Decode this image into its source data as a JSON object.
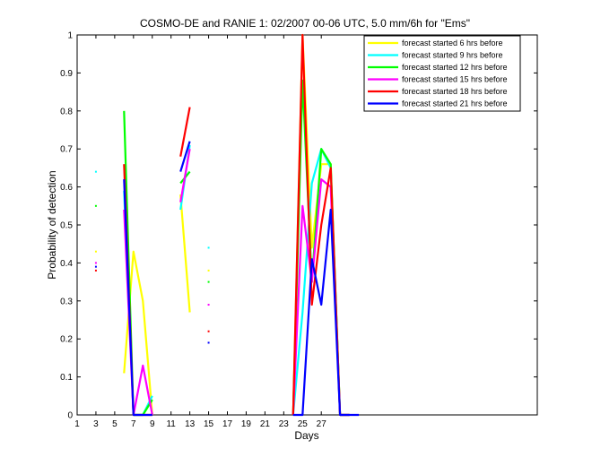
{
  "chart_data": {
    "type": "line",
    "title": "COSMO-DE and RANIE 1: 02/2007 00-06 UTC, 5.0 mm/6h for \"Ems\"",
    "xlabel": "Days",
    "ylabel": "Probability of detection",
    "xlim": [
      1,
      50
    ],
    "ylim": [
      0,
      1
    ],
    "xticks": [
      1,
      3,
      5,
      7,
      9,
      11,
      13,
      15,
      17,
      19,
      21,
      23,
      25,
      27
    ],
    "yticks": [
      0,
      0.1,
      0.2,
      0.3,
      0.4,
      0.5,
      0.6,
      0.7,
      0.8,
      0.9,
      1
    ],
    "legend_position": "top-right",
    "series": [
      {
        "name": "forecast started 6 hrs before",
        "color": "#ffff00",
        "dots": [
          [
            3,
            0.43
          ],
          [
            15,
            0.38
          ]
        ],
        "segments": [
          [
            [
              6,
              0.11
            ],
            [
              7,
              0.43
            ],
            [
              8,
              0.3
            ],
            [
              9,
              0.0
            ]
          ],
          [
            [
              12,
              0.58
            ],
            [
              13,
              0.27
            ]
          ],
          [
            [
              24,
              0.0
            ],
            [
              25,
              1.0
            ],
            [
              26,
              0.44
            ],
            [
              27,
              0.66
            ],
            [
              28,
              0.66
            ],
            [
              29,
              0.0
            ],
            [
              30,
              0.0
            ]
          ]
        ]
      },
      {
        "name": "forecast started 9 hrs before",
        "color": "#00ffff",
        "dots": [
          [
            3,
            0.64
          ],
          [
            15,
            0.44
          ]
        ],
        "segments": [
          [
            [
              6,
              0.59
            ],
            [
              7,
              0.0
            ],
            [
              8,
              0.0
            ],
            [
              9,
              0.05
            ]
          ],
          [
            [
              12,
              0.54
            ],
            [
              13,
              0.71
            ]
          ],
          [
            [
              24,
              0.0
            ],
            [
              25,
              0.27
            ],
            [
              26,
              0.61
            ],
            [
              27,
              0.7
            ],
            [
              28,
              0.65
            ],
            [
              29,
              0.0
            ],
            [
              30,
              0.0
            ]
          ]
        ]
      },
      {
        "name": "forecast started 12 hrs before",
        "color": "#00ff00",
        "dots": [
          [
            3,
            0.55
          ],
          [
            15,
            0.35
          ]
        ],
        "segments": [
          [
            [
              6,
              0.8
            ],
            [
              7,
              0.0
            ],
            [
              8,
              0.0
            ],
            [
              9,
              0.04
            ]
          ],
          [
            [
              12,
              0.61
            ],
            [
              13,
              0.64
            ]
          ],
          [
            [
              24,
              0.0
            ],
            [
              25,
              0.88
            ],
            [
              26,
              0.35
            ],
            [
              27,
              0.7
            ],
            [
              28,
              0.66
            ],
            [
              29,
              0.0
            ],
            [
              30,
              0.0
            ]
          ]
        ]
      },
      {
        "name": "forecast started 15 hrs before",
        "color": "#ff00ff",
        "dots": [
          [
            3,
            0.4
          ],
          [
            15,
            0.29
          ]
        ],
        "segments": [
          [
            [
              6,
              0.54
            ],
            [
              7,
              0.0
            ],
            [
              8,
              0.13
            ],
            [
              9,
              0.0
            ]
          ],
          [
            [
              12,
              0.56
            ],
            [
              13,
              0.7
            ]
          ],
          [
            [
              24,
              0.0
            ],
            [
              25,
              0.55
            ],
            [
              26,
              0.35
            ],
            [
              27,
              0.62
            ],
            [
              28,
              0.6
            ],
            [
              29,
              0.0
            ],
            [
              30,
              0.0
            ]
          ]
        ]
      },
      {
        "name": "forecast started 18 hrs before",
        "color": "#ff0000",
        "dots": [
          [
            3,
            0.38
          ],
          [
            15,
            0.22
          ]
        ],
        "segments": [
          [
            [
              6,
              0.66
            ],
            [
              7,
              0.0
            ],
            [
              8,
              0.0
            ],
            [
              9,
              0.0
            ]
          ],
          [
            [
              12,
              0.68
            ],
            [
              13,
              0.81
            ]
          ],
          [
            [
              24,
              0.0
            ],
            [
              25,
              1.0
            ],
            [
              26,
              0.29
            ],
            [
              27,
              0.5
            ],
            [
              28,
              0.65
            ],
            [
              29,
              0.0
            ],
            [
              30,
              0.0
            ]
          ]
        ]
      },
      {
        "name": "forecast started 21 hrs before",
        "color": "#0000ff",
        "dots": [
          [
            3,
            0.39
          ],
          [
            15,
            0.19
          ]
        ],
        "segments": [
          [
            [
              6,
              0.62
            ],
            [
              7,
              0.0
            ],
            [
              8,
              0.0
            ],
            [
              9,
              0.0
            ]
          ],
          [
            [
              12,
              0.64
            ],
            [
              13,
              0.72
            ]
          ],
          [
            [
              24,
              0.0
            ],
            [
              25,
              0.0
            ],
            [
              26,
              0.41
            ],
            [
              27,
              0.29
            ],
            [
              28,
              0.54
            ],
            [
              29,
              0.0
            ],
            [
              30,
              0.0
            ],
            [
              31,
              0.0
            ]
          ]
        ]
      }
    ]
  }
}
